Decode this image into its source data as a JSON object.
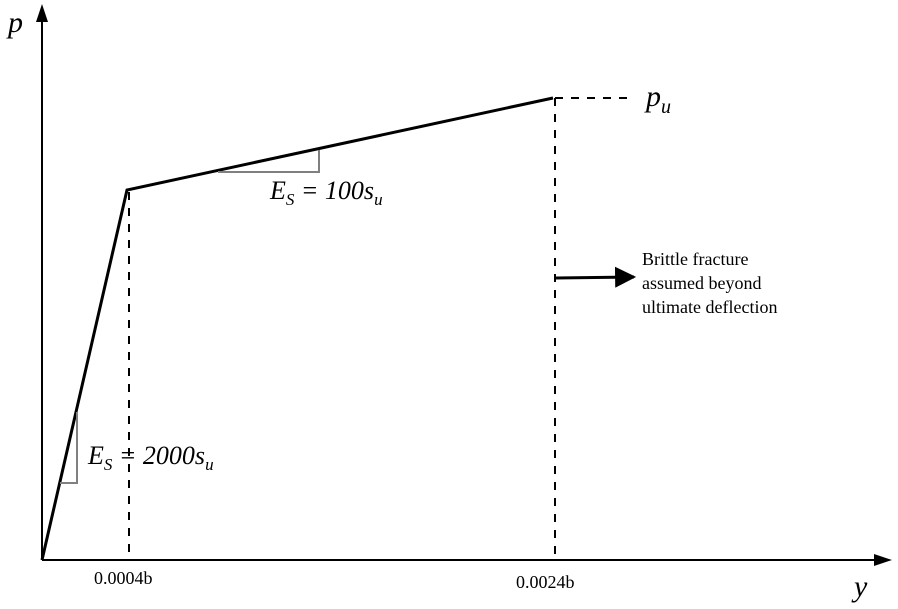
{
  "axes": {
    "y_label": "p",
    "x_label": "y",
    "tick_1": "0.0004b",
    "tick_2": "0.0024b"
  },
  "ultimate_label": {
    "base": "p",
    "sub": "u"
  },
  "slope_upper": {
    "base": "E",
    "base_sub": "S",
    "rest": " = 100s",
    "rest_sub": "u"
  },
  "slope_lower": {
    "base": "E",
    "base_sub": "S",
    "rest": " = 2000s",
    "rest_sub": "u"
  },
  "note": {
    "line_1": "Brittle fracture",
    "line_2": "assumed beyond",
    "line_3": "ultimate deflection"
  }
}
